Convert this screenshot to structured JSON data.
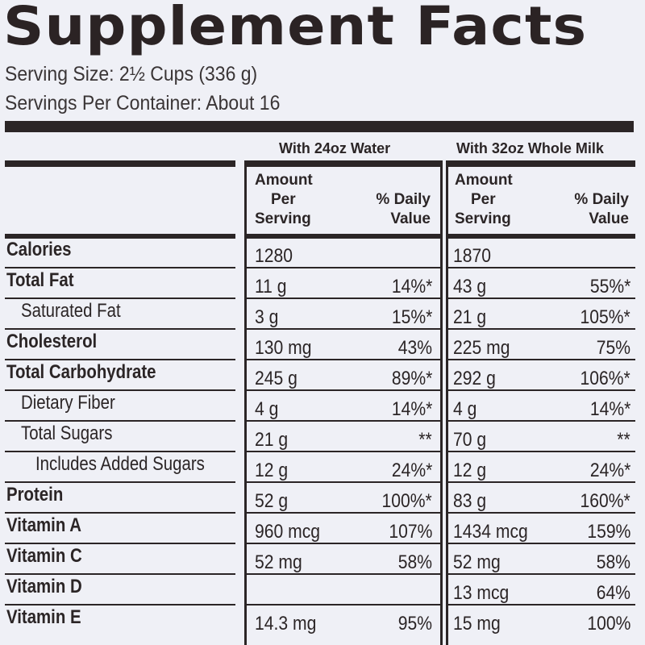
{
  "title": "Supplement Facts",
  "serving_size": "Serving Size: 2½ Cups (336 g)",
  "servings_per_container": "Servings Per Container: About 16",
  "columns": {
    "water": {
      "header": "With 24oz Water",
      "amount_label_1": "Amount",
      "amount_label_2": "Per",
      "amount_label_3": "Serving",
      "dv_label_1": "% Daily",
      "dv_label_2": "Value"
    },
    "milk": {
      "header": "With 32oz Whole Milk",
      "amount_label_1": "Amount",
      "amount_label_2": "Per",
      "amount_label_3": "Serving",
      "dv_label_1": "% Daily",
      "dv_label_2": "Value"
    }
  },
  "rows": [
    {
      "label": "Calories",
      "bold": true,
      "indent": 0,
      "water_amount": "1280",
      "water_dv": "",
      "milk_amount": "1870",
      "milk_dv": ""
    },
    {
      "label": "Total Fat",
      "bold": true,
      "indent": 0,
      "water_amount": "11 g",
      "water_dv": "14%*",
      "milk_amount": "43 g",
      "milk_dv": "55%*"
    },
    {
      "label": "Saturated Fat",
      "bold": false,
      "indent": 1,
      "water_amount": "3 g",
      "water_dv": "15%*",
      "milk_amount": "21 g",
      "milk_dv": "105%*"
    },
    {
      "label": "Cholesterol",
      "bold": true,
      "indent": 0,
      "water_amount": "130 mg",
      "water_dv": "43%",
      "milk_amount": "225 mg",
      "milk_dv": "75%"
    },
    {
      "label": "Total Carbohydrate",
      "bold": true,
      "indent": 0,
      "water_amount": "245 g",
      "water_dv": "89%*",
      "milk_amount": "292 g",
      "milk_dv": "106%*"
    },
    {
      "label": "Dietary Fiber",
      "bold": false,
      "indent": 1,
      "water_amount": "4 g",
      "water_dv": "14%*",
      "milk_amount": "4 g",
      "milk_dv": "14%*"
    },
    {
      "label": "Total Sugars",
      "bold": false,
      "indent": 1,
      "water_amount": "21 g",
      "water_dv": "**",
      "milk_amount": "70 g",
      "milk_dv": "**"
    },
    {
      "label": "Includes Added Sugars",
      "bold": false,
      "indent": 2,
      "water_amount": "12 g",
      "water_dv": "24%*",
      "milk_amount": "12 g",
      "milk_dv": "24%*"
    },
    {
      "label": "Protein",
      "bold": true,
      "indent": 0,
      "water_amount": "52 g",
      "water_dv": "100%*",
      "milk_amount": "83 g",
      "milk_dv": "160%*"
    },
    {
      "label": "Vitamin A",
      "bold": true,
      "indent": 0,
      "water_amount": "960 mcg",
      "water_dv": "107%",
      "milk_amount": "1434 mcg",
      "milk_dv": "159%"
    },
    {
      "label": "Vitamin C",
      "bold": true,
      "indent": 0,
      "water_amount": "52 mg",
      "water_dv": "58%",
      "milk_amount": "52 mg",
      "milk_dv": "58%"
    },
    {
      "label": "Vitamin D",
      "bold": true,
      "indent": 0,
      "water_amount": "",
      "water_dv": "",
      "milk_amount": "13 mcg",
      "milk_dv": "64%"
    },
    {
      "label": "Vitamin E",
      "bold": true,
      "indent": 0,
      "water_amount": "14.3 mg",
      "water_dv": "95%",
      "milk_amount": "15 mg",
      "milk_dv": "100%"
    }
  ]
}
